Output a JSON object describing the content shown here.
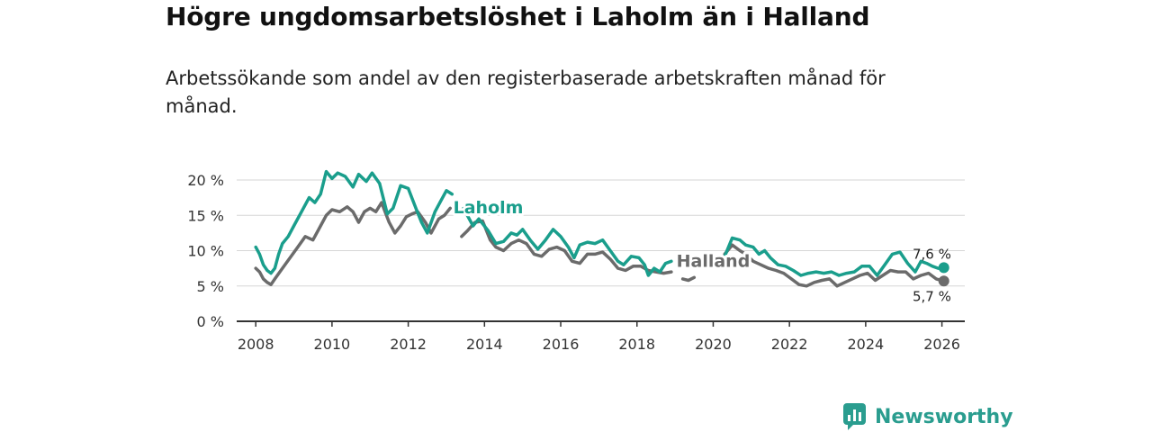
{
  "title": "Högre ungdomsarbetslöshet i Laholm än i Halland",
  "subtitle": "Arbetssökande som andel av den registerbaserade arbetskraften månad för månad.",
  "brand": {
    "name": "Newsworthy",
    "logo_icon": "newsworthy-logo-icon",
    "color": "#2a9d8f"
  },
  "chart_data": {
    "type": "line",
    "title": "Högre ungdomsarbetslöshet i Laholm än i Halland",
    "xlabel": "",
    "ylabel": "",
    "x_ticks": [
      "2008",
      "2010",
      "2012",
      "2014",
      "2016",
      "2018",
      "2020",
      "2022",
      "2024",
      "2026"
    ],
    "y_ticks": [
      {
        "value": 0,
        "label": "0 %"
      },
      {
        "value": 5,
        "label": "5 %"
      },
      {
        "value": 10,
        "label": "10 %"
      },
      {
        "value": 15,
        "label": "15 %"
      },
      {
        "value": 20,
        "label": "20 %"
      }
    ],
    "xlim": [
      2007.5,
      2026.6
    ],
    "ylim": [
      0,
      20
    ],
    "grid": true,
    "series": [
      {
        "name": "Laholm",
        "color": "#1a9e8c",
        "end_label": "7,6 %",
        "points": [
          [
            2008.0,
            10.5
          ],
          [
            2008.1,
            9.5
          ],
          [
            2008.2,
            8.0
          ],
          [
            2008.3,
            7.2
          ],
          [
            2008.4,
            6.8
          ],
          [
            2008.5,
            7.5
          ],
          [
            2008.6,
            9.5
          ],
          [
            2008.7,
            11.0
          ],
          [
            2008.85,
            12.0
          ],
          [
            2009.0,
            13.5
          ],
          [
            2009.2,
            15.5
          ],
          [
            2009.4,
            17.5
          ],
          [
            2009.55,
            16.8
          ],
          [
            2009.7,
            18.0
          ],
          [
            2009.85,
            21.2
          ],
          [
            2010.0,
            20.2
          ],
          [
            2010.15,
            21.0
          ],
          [
            2010.35,
            20.5
          ],
          [
            2010.55,
            19.0
          ],
          [
            2010.7,
            20.8
          ],
          [
            2010.9,
            19.8
          ],
          [
            2011.05,
            21.0
          ],
          [
            2011.25,
            19.5
          ],
          [
            2011.45,
            15.2
          ],
          [
            2011.6,
            16.0
          ],
          [
            2011.8,
            19.2
          ],
          [
            2012.0,
            18.8
          ],
          [
            2012.2,
            16.0
          ],
          [
            2012.35,
            14.0
          ],
          [
            2012.5,
            12.5
          ],
          [
            2012.7,
            15.5
          ],
          [
            2012.85,
            17.0
          ],
          [
            2013.0,
            18.5
          ],
          [
            2013.15,
            18.0
          ],
          null,
          [
            2013.45,
            16.0
          ],
          [
            2013.7,
            13.5
          ],
          [
            2013.85,
            14.5
          ],
          [
            2014.1,
            12.8
          ],
          [
            2014.3,
            11.0
          ],
          [
            2014.5,
            11.3
          ],
          [
            2014.7,
            12.5
          ],
          [
            2014.85,
            12.2
          ],
          [
            2015.0,
            13.0
          ],
          [
            2015.2,
            11.5
          ],
          [
            2015.4,
            10.2
          ],
          [
            2015.6,
            11.5
          ],
          [
            2015.8,
            13.0
          ],
          [
            2016.0,
            12.0
          ],
          [
            2016.2,
            10.5
          ],
          [
            2016.35,
            9.0
          ],
          [
            2016.5,
            10.8
          ],
          [
            2016.7,
            11.2
          ],
          [
            2016.9,
            11.0
          ],
          [
            2017.1,
            11.5
          ],
          [
            2017.3,
            10.0
          ],
          [
            2017.5,
            8.5
          ],
          [
            2017.65,
            8.0
          ],
          [
            2017.85,
            9.2
          ],
          [
            2018.05,
            9.0
          ],
          [
            2018.2,
            8.0
          ],
          [
            2018.3,
            6.5
          ],
          [
            2018.45,
            7.5
          ],
          [
            2018.6,
            7.0
          ],
          [
            2018.75,
            8.2
          ],
          [
            2018.9,
            8.5
          ],
          null,
          [
            2020.3,
            9.2
          ],
          [
            2020.5,
            11.8
          ],
          [
            2020.7,
            11.5
          ],
          [
            2020.85,
            10.8
          ],
          [
            2021.05,
            10.5
          ],
          [
            2021.2,
            9.5
          ],
          [
            2021.35,
            10.0
          ],
          [
            2021.5,
            9.0
          ],
          [
            2021.7,
            8.0
          ],
          [
            2021.9,
            7.8
          ],
          [
            2022.1,
            7.2
          ],
          [
            2022.3,
            6.5
          ],
          [
            2022.5,
            6.8
          ],
          [
            2022.7,
            7.0
          ],
          [
            2022.9,
            6.8
          ],
          [
            2023.1,
            7.0
          ],
          [
            2023.3,
            6.5
          ],
          [
            2023.5,
            6.8
          ],
          [
            2023.7,
            7.0
          ],
          [
            2023.9,
            7.8
          ],
          [
            2024.1,
            7.8
          ],
          [
            2024.3,
            6.5
          ],
          [
            2024.5,
            8.0
          ],
          [
            2024.7,
            9.5
          ],
          [
            2024.9,
            9.8
          ],
          [
            2025.1,
            8.2
          ],
          [
            2025.3,
            7.0
          ],
          [
            2025.45,
            8.5
          ],
          [
            2025.6,
            8.2
          ],
          [
            2025.75,
            7.8
          ],
          [
            2025.9,
            7.5
          ],
          [
            2026.05,
            7.6
          ]
        ]
      },
      {
        "name": "Halland",
        "color": "#6b6b6b",
        "end_label": "5,7 %",
        "points": [
          [
            2008.0,
            7.5
          ],
          [
            2008.1,
            7.0
          ],
          [
            2008.2,
            6.0
          ],
          [
            2008.3,
            5.5
          ],
          [
            2008.4,
            5.2
          ],
          [
            2008.5,
            6.0
          ],
          [
            2008.7,
            7.5
          ],
          [
            2008.9,
            9.0
          ],
          [
            2009.1,
            10.5
          ],
          [
            2009.3,
            12.0
          ],
          [
            2009.5,
            11.5
          ],
          [
            2009.7,
            13.5
          ],
          [
            2009.85,
            15.0
          ],
          [
            2010.0,
            15.8
          ],
          [
            2010.2,
            15.5
          ],
          [
            2010.4,
            16.2
          ],
          [
            2010.55,
            15.5
          ],
          [
            2010.7,
            14.0
          ],
          [
            2010.85,
            15.5
          ],
          [
            2011.0,
            16.0
          ],
          [
            2011.15,
            15.5
          ],
          [
            2011.3,
            16.8
          ],
          [
            2011.5,
            14.0
          ],
          [
            2011.65,
            12.5
          ],
          [
            2011.8,
            13.5
          ],
          [
            2011.95,
            14.8
          ],
          [
            2012.1,
            15.2
          ],
          [
            2012.25,
            15.5
          ],
          [
            2012.45,
            14.0
          ],
          [
            2012.6,
            12.5
          ],
          [
            2012.8,
            14.5
          ],
          [
            2012.95,
            15.0
          ],
          [
            2013.1,
            16.0
          ],
          null,
          [
            2013.4,
            12.0
          ],
          [
            2013.55,
            12.8
          ],
          [
            2013.75,
            14.0
          ],
          [
            2013.95,
            14.2
          ],
          [
            2014.15,
            11.5
          ],
          [
            2014.3,
            10.5
          ],
          [
            2014.5,
            10.0
          ],
          [
            2014.7,
            11.0
          ],
          [
            2014.9,
            11.5
          ],
          [
            2015.1,
            11.0
          ],
          [
            2015.3,
            9.5
          ],
          [
            2015.5,
            9.2
          ],
          [
            2015.7,
            10.2
          ],
          [
            2015.9,
            10.5
          ],
          [
            2016.1,
            10.0
          ],
          [
            2016.3,
            8.5
          ],
          [
            2016.5,
            8.2
          ],
          [
            2016.7,
            9.5
          ],
          [
            2016.9,
            9.5
          ],
          [
            2017.1,
            9.8
          ],
          [
            2017.3,
            8.8
          ],
          [
            2017.5,
            7.5
          ],
          [
            2017.7,
            7.2
          ],
          [
            2017.9,
            7.8
          ],
          [
            2018.1,
            7.8
          ],
          [
            2018.3,
            7.2
          ],
          [
            2018.5,
            7.0
          ],
          [
            2018.7,
            6.8
          ],
          [
            2018.9,
            7.0
          ],
          null,
          [
            2019.2,
            6.0
          ],
          [
            2019.35,
            5.8
          ],
          [
            2019.5,
            6.2
          ],
          null,
          [
            2020.3,
            9.5
          ],
          [
            2020.5,
            10.8
          ],
          [
            2020.7,
            10.0
          ],
          [
            2020.85,
            9.5
          ],
          [
            2021.05,
            8.5
          ],
          [
            2021.25,
            8.0
          ],
          [
            2021.45,
            7.5
          ],
          [
            2021.65,
            7.2
          ],
          [
            2021.85,
            6.8
          ],
          [
            2022.05,
            6.0
          ],
          [
            2022.25,
            5.2
          ],
          [
            2022.45,
            5.0
          ],
          [
            2022.65,
            5.5
          ],
          [
            2022.85,
            5.8
          ],
          [
            2023.05,
            6.0
          ],
          [
            2023.25,
            5.0
          ],
          [
            2023.45,
            5.5
          ],
          [
            2023.65,
            6.0
          ],
          [
            2023.85,
            6.5
          ],
          [
            2024.05,
            6.8
          ],
          [
            2024.25,
            5.8
          ],
          [
            2024.45,
            6.5
          ],
          [
            2024.65,
            7.2
          ],
          [
            2024.85,
            7.0
          ],
          [
            2025.05,
            7.0
          ],
          [
            2025.25,
            6.0
          ],
          [
            2025.45,
            6.5
          ],
          [
            2025.65,
            6.8
          ],
          [
            2025.85,
            6.0
          ],
          [
            2026.05,
            5.7
          ]
        ]
      }
    ],
    "annotations": [
      {
        "text": "Laholm",
        "series": "Laholm",
        "x": 2014.1,
        "y": 15.3
      },
      {
        "text": "Halland",
        "series": "Halland",
        "x": 2020.0,
        "y": 7.7
      }
    ]
  }
}
